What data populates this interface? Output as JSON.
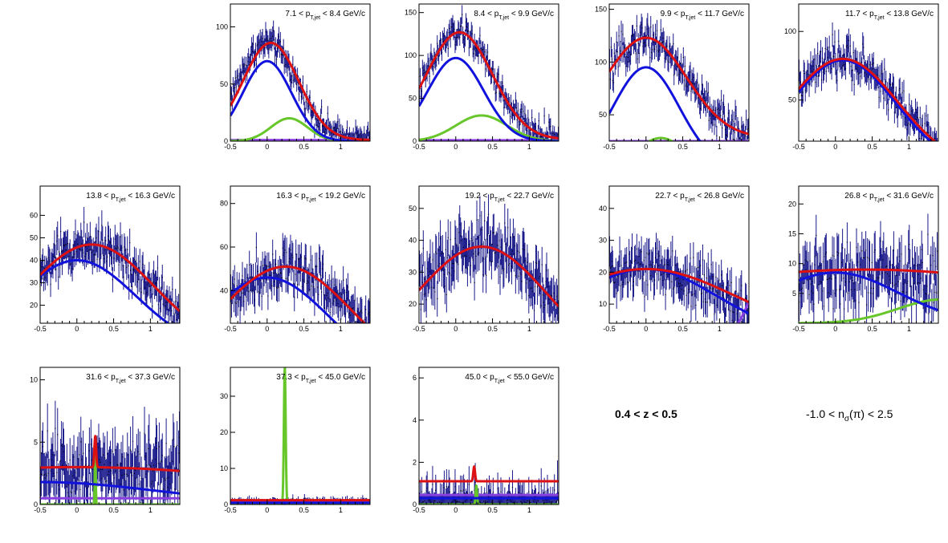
{
  "colors": {
    "data_points": "#1a1a8c",
    "total_fit": "#dd1111",
    "component_pion": "#1212dd",
    "component_green": "#66c62a",
    "component_purple": "#8a40e0"
  },
  "side_labels": {
    "z_range": "0.4 < z < 0.5",
    "nsigma_prefix": "-1.0 < n",
    "nsigma_sub": "σ",
    "nsigma_suffix": "(π) < 2.5"
  },
  "x_tick_labels": [
    "-0.5",
    "0",
    "0.5",
    "1"
  ],
  "chart_data": [
    {
      "type": "scatter",
      "title_left": "7.1 < p",
      "title_sub": "T,jet",
      "title_right": " < 8.4 GeV/c",
      "xlim": [
        -0.5,
        1.4
      ],
      "ylim": [
        0,
        120
      ],
      "yticks": [
        0,
        50,
        100
      ],
      "data": {
        "mu": 0.0,
        "sigma": 0.4,
        "amp": 85,
        "base": 1,
        "noise": 8
      },
      "curves": {
        "total": {
          "mu": 0.05,
          "sigma": 0.38,
          "amp": 85,
          "base": 1
        },
        "pion": {
          "mu": 0.0,
          "sigma": 0.33,
          "amp": 70,
          "base": 0
        },
        "green": {
          "mu": 0.3,
          "sigma": 0.25,
          "amp": 20,
          "base": 0
        },
        "purple": {
          "mu": 0.0,
          "sigma": 10,
          "amp": 0,
          "base": 1
        }
      }
    },
    {
      "type": "scatter",
      "title_left": "8.4 < p",
      "title_sub": "T,jet",
      "title_right": " < 9.9 GeV/c",
      "xlim": [
        -0.5,
        1.4
      ],
      "ylim": [
        0,
        160
      ],
      "yticks": [
        0,
        50,
        100,
        150
      ],
      "data": {
        "mu": 0.05,
        "sigma": 0.45,
        "amp": 125,
        "base": 2,
        "noise": 12
      },
      "curves": {
        "total": {
          "mu": 0.05,
          "sigma": 0.45,
          "amp": 125,
          "base": 2
        },
        "pion": {
          "mu": 0.0,
          "sigma": 0.38,
          "amp": 97,
          "base": 0
        },
        "green": {
          "mu": 0.35,
          "sigma": 0.35,
          "amp": 30,
          "base": 0
        },
        "purple": {
          "mu": 0.0,
          "sigma": 10,
          "amp": 0,
          "base": 1
        }
      }
    },
    {
      "type": "scatter",
      "title_left": "9.9 < p",
      "title_sub": "T,jet",
      "title_right": " < 11.7 GeV/c",
      "xlim": [
        -0.5,
        1.4
      ],
      "ylim": [
        25,
        155
      ],
      "yticks": [
        50,
        100,
        150
      ],
      "data": {
        "mu": 0.0,
        "sigma": 0.55,
        "amp": 95,
        "base": 28,
        "noise": 12
      },
      "curves": {
        "total": {
          "mu": 0.0,
          "sigma": 0.55,
          "amp": 95,
          "base": 28
        },
        "pion": {
          "mu": 0.0,
          "sigma": 0.45,
          "amp": 95,
          "base": 0
        },
        "green": {
          "mu": 0.2,
          "sigma": 0.32,
          "amp": 28,
          "base": 0
        },
        "purple": {
          "mu": 0.0,
          "sigma": 10,
          "amp": 0,
          "base": 25
        }
      }
    },
    {
      "type": "scatter",
      "title_left": "11.7 < p",
      "title_sub": "T,jet",
      "title_right": " < 13.8 GeV/c",
      "xlim": [
        -0.5,
        1.4
      ],
      "ylim": [
        20,
        120
      ],
      "yticks": [
        50,
        100
      ],
      "data": {
        "mu": 0.1,
        "sigma": 0.75,
        "amp": 80,
        "base": 0,
        "noise": 10
      },
      "curves": {
        "total": {
          "mu": 0.1,
          "sigma": 0.75,
          "amp": 80,
          "base": 0
        },
        "pion": {
          "mu": 0.1,
          "sigma": 0.72,
          "amp": 79,
          "base": 0
        }
      }
    },
    {
      "type": "scatter",
      "title_left": "13.8 < p",
      "title_sub": "T,jet",
      "title_right": " < 16.3 GeV/c",
      "xlim": [
        -0.5,
        1.4
      ],
      "ylim": [
        12,
        73
      ],
      "yticks": [
        20,
        30,
        40,
        50,
        60
      ],
      "data": {
        "mu": 0.2,
        "sigma": 0.85,
        "amp": 47,
        "base": 0,
        "noise": 7
      },
      "curves": {
        "total": {
          "mu": 0.2,
          "sigma": 0.85,
          "amp": 47,
          "base": 0
        },
        "pion": {
          "mu": 0.0,
          "sigma": 0.8,
          "amp": 40,
          "base": 0
        }
      }
    },
    {
      "type": "scatter",
      "title_left": "16.3 < p",
      "title_sub": "T,jet",
      "title_right": " < 19.2 GeV/c",
      "xlim": [
        -0.5,
        1.4
      ],
      "ylim": [
        25,
        88
      ],
      "yticks": [
        40,
        60,
        80
      ],
      "data": {
        "mu": 0.25,
        "sigma": 0.9,
        "amp": 51,
        "base": 0,
        "noise": 8
      },
      "curves": {
        "total": {
          "mu": 0.25,
          "sigma": 0.9,
          "amp": 51,
          "base": 0
        },
        "pion": {
          "mu": 0.0,
          "sigma": 0.85,
          "amp": 46,
          "base": 0
        }
      }
    },
    {
      "type": "scatter",
      "title_left": "19.2 < p",
      "title_sub": "T,jet",
      "title_right": " < 22.7 GeV/c",
      "xlim": [
        -0.5,
        1.4
      ],
      "ylim": [
        14,
        57
      ],
      "yticks": [
        20,
        30,
        40,
        50
      ],
      "data": {
        "mu": 0.35,
        "sigma": 0.9,
        "amp": 38,
        "base": 0,
        "noise": 7
      },
      "curves": {
        "total": {
          "mu": 0.35,
          "sigma": 0.9,
          "amp": 38,
          "base": 0
        },
        "pion": {
          "mu": 0.35,
          "sigma": 0.9,
          "amp": 38,
          "base": 0
        }
      }
    },
    {
      "type": "scatter",
      "title_left": "22.7 < p",
      "title_sub": "T,jet",
      "title_right": " < 26.8 GeV/c",
      "xlim": [
        -0.5,
        1.4
      ],
      "ylim": [
        4,
        47
      ],
      "yticks": [
        10,
        20,
        30,
        40
      ],
      "data": {
        "mu": 0.0,
        "sigma": 1.0,
        "amp": 21,
        "base": 0,
        "noise": 6
      },
      "curves": {
        "total": {
          "mu": 0.0,
          "sigma": 1.2,
          "amp": 21,
          "base": 0
        },
        "pion": {
          "mu": 0.0,
          "sigma": 0.95,
          "amp": 21,
          "base": 0
        },
        "purple": {
          "mu": 1.6,
          "sigma": 0.2,
          "amp": 18,
          "base": 0
        }
      }
    },
    {
      "type": "scatter",
      "title_left": "26.8 < p",
      "title_sub": "T,jet",
      "title_right": " < 31.6 GeV/c",
      "xlim": [
        -0.5,
        1.4
      ],
      "ylim": [
        0,
        23
      ],
      "yticks": [
        5,
        10,
        15,
        20
      ],
      "data": {
        "mu": 0.2,
        "sigma": 1.5,
        "amp": 9,
        "base": 0,
        "noise": 4
      },
      "curves": {
        "total": {
          "mu": 0.4,
          "sigma": 3.0,
          "amp": 9,
          "base": 0
        },
        "pion": {
          "mu": 0.0,
          "sigma": 0.85,
          "amp": 8.5,
          "base": 0
        },
        "green": {
          "mu": 1.45,
          "sigma": 0.6,
          "amp": 4,
          "base": 0
        }
      }
    },
    {
      "type": "scatter",
      "title_left": "31.6 < p",
      "title_sub": "T,jet",
      "title_right": " < 37.3 GeV/c",
      "xlim": [
        -0.5,
        1.4
      ],
      "ylim": [
        0,
        11
      ],
      "yticks": [
        0,
        5,
        10
      ],
      "data": {
        "mu": 0.2,
        "sigma": 3.0,
        "amp": 3,
        "base": 0,
        "noise": 2.2
      },
      "curves": {
        "total": {
          "mu": 0.0,
          "sigma": 3.0,
          "amp": 3,
          "base": 0,
          "spike_x": 0.25,
          "spike_h": 2.5
        },
        "pion": {
          "mu": -0.5,
          "sigma": 1.6,
          "amp": 1.8,
          "base": 0
        },
        "green": {
          "mu": 0.25,
          "sigma": 0.006,
          "amp": 5,
          "base": 0
        },
        "purple": {
          "mu": 0.0,
          "sigma": 10,
          "amp": 0,
          "base": 0.5
        }
      }
    },
    {
      "type": "scatter",
      "title_left": "37.3 < p",
      "title_sub": "T,jet",
      "title_right": " < 45.0 GeV/c",
      "xlim": [
        -0.5,
        1.4
      ],
      "ylim": [
        0,
        38
      ],
      "yticks": [
        0,
        10,
        20,
        30
      ],
      "data": {
        "mu": 0.4,
        "sigma": 5.0,
        "amp": 0.6,
        "base": 0,
        "noise": 0.7
      },
      "curves": {
        "total": {
          "mu": 0.0,
          "sigma": 10,
          "amp": 0,
          "base": 1.2
        },
        "pion": {
          "mu": 0.0,
          "sigma": 10,
          "amp": 0,
          "base": 0.5
        },
        "green": {
          "mu": 0.24,
          "sigma": 0.012,
          "amp": 38,
          "base": 0
        },
        "purple": {
          "mu": 0.0,
          "sigma": 10,
          "amp": 0,
          "base": 0.8
        }
      }
    },
    {
      "type": "scatter",
      "title_left": "45.0 < p",
      "title_sub": "T,jet",
      "title_right": " < 55.0 GeV/c",
      "xlim": [
        -0.5,
        1.4
      ],
      "ylim": [
        0,
        6.5
      ],
      "yticks": [
        0,
        2,
        4,
        6
      ],
      "data": {
        "mu": 0.3,
        "sigma": 5.0,
        "amp": 0.2,
        "base": 0,
        "noise": 0.5
      },
      "curves": {
        "total": {
          "mu": 0.0,
          "sigma": 10,
          "amp": 0,
          "base": 1.1,
          "spike_x": 0.25,
          "spike_h": 0.7
        },
        "pion": {
          "mu": 0.0,
          "sigma": 10,
          "amp": 0,
          "base": 0.3
        },
        "green": {
          "mu": 0.28,
          "sigma": 0.01,
          "amp": 0.9,
          "base": 0
        },
        "purple": {
          "mu": 0.0,
          "sigma": 10,
          "amp": 0,
          "base": 0.45
        }
      }
    }
  ]
}
